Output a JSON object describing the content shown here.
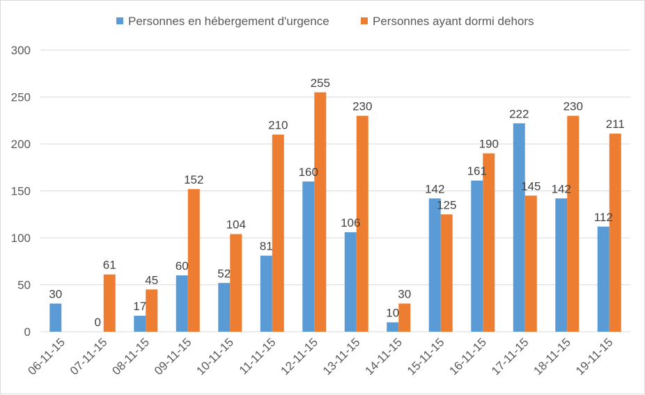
{
  "chart_data": {
    "type": "bar",
    "title": "",
    "xlabel": "",
    "ylabel": "",
    "ylim": [
      0,
      300
    ],
    "yticks": [
      0,
      50,
      100,
      150,
      200,
      250,
      300
    ],
    "grid": true,
    "legend_position": "top",
    "categories": [
      "06-11-15",
      "07-11-15",
      "08-11-15",
      "09-11-15",
      "10-11-15",
      "11-11-15",
      "12-11-15",
      "13-11-15",
      "14-11-15",
      "15-11-15",
      "16-11-15",
      "17-11-15",
      "18-11-15",
      "19-11-15"
    ],
    "series": [
      {
        "name": "Personnes en hébergement d'urgence",
        "color": "#5b9bd5",
        "values": [
          30,
          0,
          17,
          60,
          52,
          81,
          160,
          106,
          10,
          142,
          161,
          222,
          142,
          112
        ]
      },
      {
        "name": "Personnes ayant dormi dehors",
        "color": "#ed7d31",
        "values": [
          null,
          61,
          45,
          152,
          104,
          210,
          255,
          230,
          30,
          125,
          190,
          145,
          230,
          211
        ]
      }
    ]
  }
}
